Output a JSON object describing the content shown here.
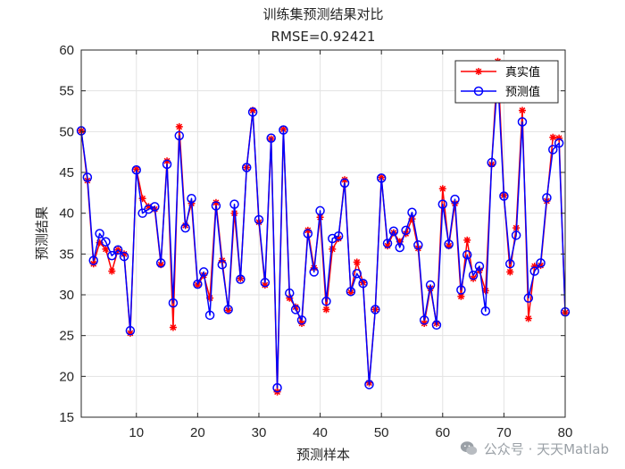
{
  "chart_data": {
    "type": "line",
    "title": "训练集预测结果对比",
    "subtitle": "RMSE=0.92421",
    "xlabel": "预测样本",
    "ylabel": "预测结果",
    "xlim": [
      1,
      80
    ],
    "ylim": [
      15,
      60
    ],
    "xticks": [
      10,
      20,
      30,
      40,
      50,
      60,
      70,
      80
    ],
    "yticks": [
      15,
      20,
      25,
      30,
      35,
      40,
      45,
      50,
      55,
      60
    ],
    "grid": true,
    "legend_position": "top-right",
    "x": [
      1,
      2,
      3,
      4,
      5,
      6,
      7,
      8,
      9,
      10,
      11,
      12,
      13,
      14,
      15,
      16,
      17,
      18,
      19,
      20,
      21,
      22,
      23,
      24,
      25,
      26,
      27,
      28,
      29,
      30,
      31,
      32,
      33,
      34,
      35,
      36,
      37,
      38,
      39,
      40,
      41,
      42,
      43,
      44,
      45,
      46,
      47,
      48,
      49,
      50,
      51,
      52,
      53,
      54,
      55,
      56,
      57,
      58,
      59,
      60,
      61,
      62,
      63,
      64,
      65,
      66,
      67,
      68,
      69,
      70,
      71,
      72,
      73,
      74,
      75,
      76,
      77,
      78,
      79,
      80
    ],
    "series": [
      {
        "name": "真实值",
        "color": "#ff0000",
        "marker": "asterisk",
        "values": [
          50.1,
          44.0,
          33.8,
          36.4,
          35.6,
          32.9,
          35.5,
          35.0,
          25.3,
          45.4,
          41.8,
          40.8,
          40.5,
          33.7,
          46.4,
          26.0,
          50.6,
          38.5,
          41.2,
          31.2,
          32.4,
          29.6,
          41.3,
          34.2,
          28.1,
          40.0,
          32.0,
          45.6,
          52.6,
          38.9,
          31.2,
          49.1,
          18.1,
          50.3,
          29.6,
          28.5,
          26.5,
          37.9,
          33.3,
          39.5,
          28.2,
          35.6,
          36.9,
          44.1,
          30.3,
          34.0,
          31.5,
          19.2,
          28.2,
          44.4,
          36.0,
          37.6,
          36.5,
          37.5,
          39.3,
          35.7,
          26.5,
          30.8,
          26.5,
          43.0,
          36.0,
          41.2,
          29.8,
          36.7,
          32.0,
          33.0,
          30.5,
          46.0,
          58.6,
          42.2,
          32.8,
          38.2,
          52.6,
          27.1,
          33.5,
          33.6,
          41.5,
          49.3,
          49.2,
          27.8
        ]
      },
      {
        "name": "预测值",
        "color": "#0000ff",
        "marker": "circle",
        "values": [
          50.1,
          44.4,
          34.2,
          37.5,
          36.5,
          34.8,
          35.5,
          34.7,
          25.6,
          45.3,
          40.0,
          40.5,
          40.8,
          33.9,
          46.0,
          29.0,
          49.5,
          38.2,
          41.8,
          31.3,
          32.8,
          27.5,
          40.9,
          33.7,
          28.2,
          41.1,
          31.9,
          45.6,
          52.4,
          39.2,
          31.5,
          49.2,
          18.6,
          50.2,
          30.2,
          28.2,
          26.9,
          37.5,
          32.8,
          40.3,
          29.2,
          36.9,
          37.2,
          43.7,
          30.4,
          32.6,
          31.4,
          19.0,
          28.2,
          44.3,
          36.3,
          37.8,
          35.8,
          37.9,
          40.1,
          36.1,
          26.9,
          31.2,
          26.3,
          41.1,
          36.2,
          41.7,
          30.6,
          34.9,
          32.4,
          33.5,
          28.0,
          46.2,
          56.6,
          42.1,
          33.8,
          37.3,
          51.2,
          29.6,
          32.9,
          33.9,
          41.9,
          47.8,
          48.6,
          27.9
        ]
      }
    ]
  },
  "watermark": {
    "text": "公众号 · 天天Matlab",
    "icon": "wechat-icon"
  }
}
